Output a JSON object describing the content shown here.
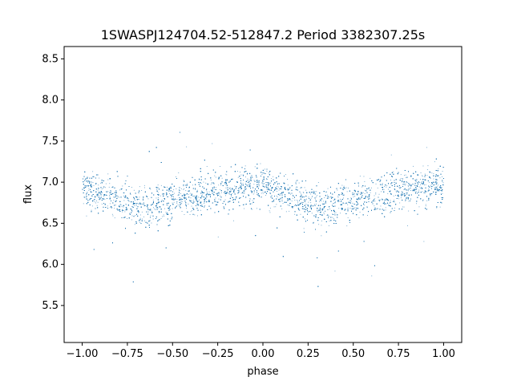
{
  "chart_data": {
    "type": "scatter",
    "title": "1SWASPJ124704.52-512847.2 Period 3382307.25s",
    "xlabel": "phase",
    "ylabel": "flux",
    "xlim": [
      -1.1,
      1.1
    ],
    "ylim": [
      5.05,
      8.65
    ],
    "x_ticks": [
      -1.0,
      -0.75,
      -0.5,
      -0.25,
      0.0,
      0.25,
      0.5,
      0.75,
      1.0
    ],
    "x_tick_labels": [
      "−1.00",
      "−0.75",
      "−0.50",
      "−0.25",
      "0.00",
      "0.25",
      "0.50",
      "0.75",
      "1.00"
    ],
    "y_ticks": [
      5.5,
      6.0,
      6.5,
      7.0,
      7.5,
      8.0,
      8.5
    ],
    "y_tick_labels": [
      "5.5",
      "6.0",
      "6.5",
      "7.0",
      "7.5",
      "8.0",
      "8.5"
    ],
    "grid": false,
    "marker_color": "#1f77b4",
    "series": [
      {
        "profile_phase": [
          -1.0,
          -0.875,
          -0.75,
          -0.675,
          -0.5,
          -0.375,
          -0.25,
          -0.125,
          0.0,
          0.125,
          0.25,
          0.325,
          0.5,
          0.625,
          0.75,
          0.875,
          1.0
        ],
        "profile_flux": [
          6.95,
          6.85,
          6.75,
          6.68,
          6.8,
          6.85,
          6.9,
          6.95,
          6.95,
          6.85,
          6.75,
          6.68,
          6.8,
          6.85,
          6.9,
          6.95,
          6.95
        ],
        "spread": 0.22
      }
    ]
  }
}
